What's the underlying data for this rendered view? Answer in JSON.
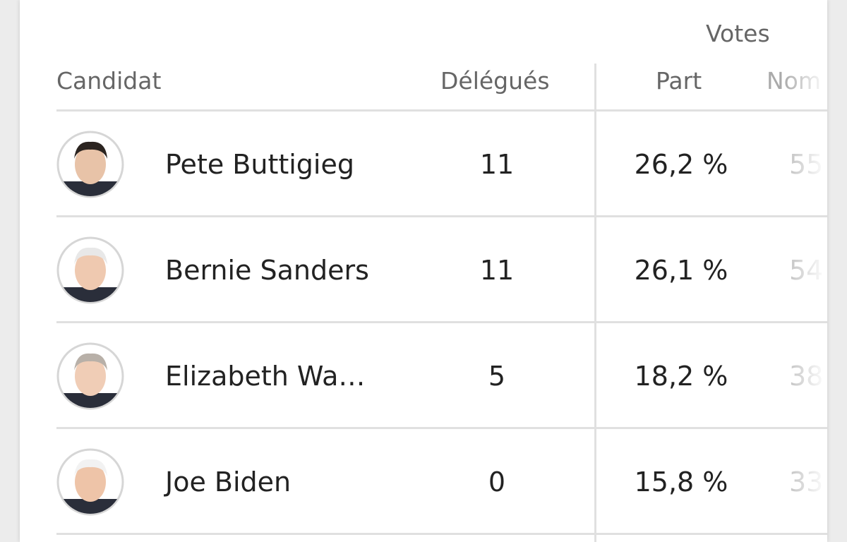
{
  "table": {
    "group_header": "Votes",
    "columns": [
      "Candidat",
      "Délégués",
      "Part",
      "Nom"
    ],
    "rows": [
      {
        "name": "Pete Buttigieg",
        "delegates": 11,
        "share": "26,2 %",
        "count": "55"
      },
      {
        "name": "Bernie Sanders",
        "delegates": 11,
        "share": "26,1 %",
        "count": "54"
      },
      {
        "name": "Elizabeth Wa…",
        "delegates": 5,
        "share": "18,2 %",
        "count": "38"
      },
      {
        "name": "Joe Biden",
        "delegates": 0,
        "share": "15,8 %",
        "count": "33"
      }
    ]
  }
}
